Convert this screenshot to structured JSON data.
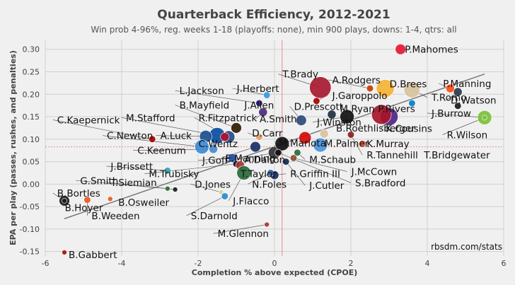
{
  "chart_data": {
    "type": "scatter",
    "title": "Quarterback Efficiency, 2012-2021",
    "subtitle": "Win prob 4-96%, reg. weeks 1-18 (playoffs: none), min 900 plays, downs: 1-4, qtrs: all",
    "xlabel": "Completion % above expected (CPOE)",
    "ylabel": "EPA per play (passes, rushes, and penalties)",
    "credit": "rbsdm.com/stats",
    "xlim": [
      -6,
      6
    ],
    "ylim": [
      -0.16,
      0.32
    ],
    "xticks": [
      "-6",
      "-4",
      "-2",
      "0",
      "2",
      "4",
      "6"
    ],
    "yticks": [
      "-0.15",
      "-0.10",
      "-0.05",
      "0.00",
      "0.05",
      "0.10",
      "0.15",
      "0.20",
      "0.25",
      "0.30"
    ],
    "grid": true,
    "reference_lines": {
      "x_mean": 0.2,
      "y_mean": 0.083
    },
    "trend_line": {
      "x": [
        -5.5,
        5.5
      ],
      "y": [
        -0.077,
        0.245
      ]
    },
    "points": [
      {
        "name": "P.Mahomes",
        "x": 3.3,
        "y": 0.3,
        "color": "#e31837",
        "plays": 3
      },
      {
        "name": "P.Manning",
        "x": 4.6,
        "y": 0.213,
        "color": "#fb4f14",
        "plays": 2
      },
      {
        "name": "T.Brady",
        "x": 1.2,
        "y": 0.215,
        "color": "#a71930",
        "plays": 9
      },
      {
        "name": "A.Rodgers",
        "x": 2.5,
        "y": 0.213,
        "color": "#c83803",
        "plays": 1
      },
      {
        "name": "D.Brees",
        "x": 2.9,
        "y": 0.213,
        "color": "#f5b335",
        "plays": 7
      },
      {
        "name": "T.Romo",
        "x": 3.6,
        "y": 0.21,
        "color": "#d8c29d",
        "plays": 6
      },
      {
        "name": "D.Watson",
        "x": 4.8,
        "y": 0.205,
        "color": "#2a3a4a",
        "plays": 2
      },
      {
        "name": "J.Herbert",
        "x": -0.2,
        "y": 0.198,
        "color": "#3a9ae0",
        "plays": 1
      },
      {
        "name": "L.Jackson",
        "x": -0.4,
        "y": 0.18,
        "color": "#241773",
        "plays": 1
      },
      {
        "name": "J.Garoppolo",
        "x": 1.1,
        "y": 0.185,
        "color": "#aa0000",
        "plays": 1
      },
      {
        "name": "R.Rivers",
        "x": 3.6,
        "y": 0.18,
        "color": "#0080c6",
        "plays": 1
      },
      {
        "name": "T.Romo-dot",
        "x": 4.8,
        "y": 0.174,
        "color": "#1a1a1a",
        "plays": 1
      },
      {
        "name": "J.Burrow",
        "x": 5.5,
        "y": 0.148,
        "color": "#7cc03b",
        "plays": 5
      },
      {
        "name": "R.Wilson",
        "x": 5.5,
        "y": 0.148,
        "color": "#7cc03b",
        "plays": 0
      },
      {
        "name": "M.Ryan",
        "x": 1.5,
        "y": 0.155,
        "color": "#203040",
        "plays": 2
      },
      {
        "name": "J.Winston",
        "x": 1.9,
        "y": 0.15,
        "color": "#111111",
        "plays": 5
      },
      {
        "name": "K.Cousins",
        "x": 3.0,
        "y": 0.15,
        "color": "#4f2683",
        "plays": 7
      },
      {
        "name": "P.Rivers-big",
        "x": 2.8,
        "y": 0.155,
        "color": "#a5162a",
        "plays": 8
      },
      {
        "name": "D.Prescott",
        "x": 0.7,
        "y": 0.142,
        "color": "#2c4b7a",
        "plays": 3
      },
      {
        "name": "A.Smith",
        "x": -0.3,
        "y": 0.16,
        "color": "#4a2d7a",
        "plays": 2
      },
      {
        "name": "B.Mayfield",
        "x": -1.0,
        "y": 0.125,
        "color": "#311d00",
        "plays": 3
      },
      {
        "name": "R.Fitzpatrick",
        "x": -1.2,
        "y": 0.105,
        "color": "#1f4a8a",
        "plays": 4
      },
      {
        "name": "D.Carr",
        "x": -0.4,
        "y": 0.105,
        "color": "#e0a070",
        "plays": 1
      },
      {
        "name": "M.Stafford",
        "x": -1.5,
        "y": 0.108,
        "color": "#0b4ea2",
        "plays": 6
      },
      {
        "name": "A.Luck",
        "x": -1.8,
        "y": 0.106,
        "color": "#1d4f91",
        "plays": 4
      },
      {
        "name": "C.Wentz",
        "x": -1.3,
        "y": 0.105,
        "color": "#b0102e",
        "plays": 2
      },
      {
        "name": "C.Kaepernick",
        "x": -3.2,
        "y": 0.1,
        "color": "#aa0000",
        "plays": 1
      },
      {
        "name": "C.Newton",
        "x": -1.9,
        "y": 0.083,
        "color": "#3d8ad4",
        "plays": 5
      },
      {
        "name": "C.Keenum",
        "x": -1.6,
        "y": 0.078,
        "color": "#4a8bd0",
        "plays": 2
      },
      {
        "name": "E.Manning",
        "x": -0.5,
        "y": 0.083,
        "color": "#1b3066",
        "plays": 3
      },
      {
        "name": "A.Dalton",
        "x": 0.0,
        "y": 0.07,
        "color": "#333333",
        "plays": 4
      },
      {
        "name": "M.Mariota",
        "x": 0.2,
        "y": 0.09,
        "color": "#111111",
        "plays": 5
      },
      {
        "name": "J.Winston-red",
        "x": 0.8,
        "y": 0.103,
        "color": "#d50a0a",
        "plays": 4
      },
      {
        "name": "M.Palmer",
        "x": 1.2,
        "y": 0.087,
        "color": "#4b92db",
        "plays": 5
      },
      {
        "name": "B.Roethlisberger",
        "x": 1.3,
        "y": 0.112,
        "color": "#d8c29d",
        "plays": 2
      },
      {
        "name": "K.Murray",
        "x": 2.3,
        "y": 0.09,
        "color": "#e8532a",
        "plays": 1
      },
      {
        "name": "R.Tannehill",
        "x": 2.0,
        "y": 0.11,
        "color": "#8a2020",
        "plays": 1
      },
      {
        "name": "M.Schaub",
        "x": 0.6,
        "y": 0.07,
        "color": "#2b6a3a",
        "plays": 1
      },
      {
        "name": "J.Goff",
        "x": -1.1,
        "y": 0.058,
        "color": "#1f4aa0",
        "plays": 2
      },
      {
        "name": "M.Trubisky",
        "x": -1.0,
        "y": 0.045,
        "color": "#0b162a",
        "plays": 1
      },
      {
        "name": "T.Taylor",
        "x": -0.9,
        "y": 0.042,
        "color": "#a33",
        "plays": 2
      },
      {
        "name": "J.Flacco",
        "x": -0.8,
        "y": 0.025,
        "color": "#2a6a3a",
        "plays": 5
      },
      {
        "name": "R.Griffin III",
        "x": 0.0,
        "y": 0.02,
        "color": "#1a2a5a",
        "plays": 2
      },
      {
        "name": "N.Foles",
        "x": -0.1,
        "y": 0.025,
        "color": "#3460a0",
        "plays": 1
      },
      {
        "name": "J.McCown",
        "x": 0.5,
        "y": 0.058,
        "color": "#8a5030",
        "plays": 1
      },
      {
        "name": "J.Cutler",
        "x": 0.3,
        "y": 0.05,
        "color": "#0f2a55",
        "plays": 1
      },
      {
        "name": "S.Bradford",
        "x": 0.1,
        "y": 0.07,
        "color": "#111111",
        "plays": 1
      },
      {
        "name": "J.Brissett",
        "x": -2.8,
        "y": 0.03,
        "color": "#3aa0b0",
        "plays": 1
      },
      {
        "name": "G.Smith",
        "x": -2.8,
        "y": -0.01,
        "color": "#2a6a3a",
        "plays": 0
      },
      {
        "name": "T.Siemian",
        "x": -2.6,
        "y": -0.012,
        "color": "#1a1a1a",
        "plays": 0
      },
      {
        "name": "D.Jones",
        "x": -1.4,
        "y": -0.018,
        "color": "#ddd0a0",
        "plays": 0
      },
      {
        "name": "S.Darnold",
        "x": -1.3,
        "y": -0.027,
        "color": "#2a8ad0",
        "plays": 1
      },
      {
        "name": "B.Osweiler",
        "x": -4.3,
        "y": -0.033,
        "color": "#e85a20",
        "plays": 0
      },
      {
        "name": "B.Weeden",
        "x": -4.9,
        "y": -0.035,
        "color": "#e85a20",
        "plays": 1
      },
      {
        "name": "B.Bortles",
        "x": -5.5,
        "y": -0.037,
        "color": "#1a1a1a",
        "plays": 3
      },
      {
        "name": "B.Hoyer",
        "x": -5.5,
        "y": -0.037,
        "color": "#1a1a1a",
        "plays": 0
      },
      {
        "name": "M.Glennon",
        "x": -0.2,
        "y": -0.09,
        "color": "#aa3333",
        "plays": 0
      },
      {
        "name": "B.Gabbert",
        "x": -5.5,
        "y": -0.152,
        "color": "#aa1111",
        "plays": 0
      }
    ],
    "labels": [
      {
        "text": "P.Mahomes",
        "lx": 3.3,
        "ly": 0.3
      },
      {
        "text": "P.Manning",
        "lx": 4.3,
        "ly": 0.224
      },
      {
        "text": "T.Brady",
        "lx": 0.1,
        "ly": 0.245
      },
      {
        "text": "A.Rodgers",
        "lx": 1.4,
        "ly": 0.232
      },
      {
        "text": "D.Brees",
        "lx": 2.9,
        "ly": 0.223
      },
      {
        "text": "J.Herbert",
        "lx": -1.1,
        "ly": 0.213
      },
      {
        "text": "L.Jackson",
        "lx": -2.6,
        "ly": 0.208
      },
      {
        "text": "T.Romo",
        "lx": 4.0,
        "ly": 0.193
      },
      {
        "text": "J.Garoppolo",
        "lx": 1.4,
        "ly": 0.197
      },
      {
        "text": "D.Watson",
        "lx": 4.5,
        "ly": 0.187
      },
      {
        "text": "B.Mayfield",
        "lx": -2.6,
        "ly": 0.176
      },
      {
        "text": "J.Allen",
        "lx": -0.9,
        "ly": 0.176
      },
      {
        "text": "D.Prescott",
        "lx": 0.4,
        "ly": 0.173
      },
      {
        "text": "M.Ryan",
        "lx": 1.6,
        "ly": 0.168
      },
      {
        "text": "P.Rivers",
        "lx": 2.6,
        "ly": 0.168
      },
      {
        "text": "M.Stafford",
        "lx": -4.0,
        "ly": 0.148
      },
      {
        "text": "R.Fitzpatrick",
        "lx": -2.1,
        "ly": 0.148
      },
      {
        "text": "A.Smith",
        "lx": -0.5,
        "ly": 0.145
      },
      {
        "text": "J.Winston",
        "lx": 1.0,
        "ly": 0.138
      },
      {
        "text": "J.Burrow",
        "lx": 4.0,
        "ly": 0.158
      },
      {
        "text": "C.Kaepernick",
        "lx": -5.8,
        "ly": 0.143
      },
      {
        "text": "D.Carr",
        "lx": -0.7,
        "ly": 0.114
      },
      {
        "text": "B.Roethlisberger",
        "lx": 1.5,
        "ly": 0.125
      },
      {
        "text": "K.Cousins",
        "lx": 2.8,
        "ly": 0.124
      },
      {
        "text": "C.Newton",
        "lx": -4.5,
        "ly": 0.108
      },
      {
        "text": "A.Luck",
        "lx": -3.1,
        "ly": 0.108
      },
      {
        "text": "M.Mariota",
        "lx": -0.0,
        "ly": 0.092
      },
      {
        "text": "M.Palmer",
        "lx": 1.2,
        "ly": 0.091
      },
      {
        "text": "K.Murray",
        "lx": 2.3,
        "ly": 0.09
      },
      {
        "text": "C.Wentz",
        "lx": -2.1,
        "ly": 0.09
      },
      {
        "text": "R.Wilson",
        "lx": 4.4,
        "ly": 0.11
      },
      {
        "text": "C.Keenum",
        "lx": -3.7,
        "ly": 0.075
      },
      {
        "text": "J.Goff",
        "lx": -2.0,
        "ly": 0.053
      },
      {
        "text": "E.Manning",
        "lx": -1.4,
        "ly": 0.058
      },
      {
        "text": "A.Dalton",
        "lx": -0.9,
        "ly": 0.055
      },
      {
        "text": "M.Schaub",
        "lx": 0.8,
        "ly": 0.055
      },
      {
        "text": "R.Tannehill",
        "lx": 2.3,
        "ly": 0.065
      },
      {
        "text": "T.Bridgewater",
        "lx": 3.8,
        "ly": 0.065
      },
      {
        "text": "J.Brissett",
        "lx": -4.4,
        "ly": 0.04
      },
      {
        "text": "M.Trubisky",
        "lx": -3.4,
        "ly": 0.023
      },
      {
        "text": "T.Taylor",
        "lx": -1.0,
        "ly": 0.023
      },
      {
        "text": "R.Griffin III",
        "lx": 0.3,
        "ly": 0.023
      },
      {
        "text": "J.McCown",
        "lx": 1.9,
        "ly": 0.028
      },
      {
        "text": "G.Smith",
        "lx": -5.2,
        "ly": 0.008
      },
      {
        "text": "T.Siemian",
        "lx": -4.4,
        "ly": 0.004
      },
      {
        "text": "D.Jones",
        "lx": -2.2,
        "ly": 0.0
      },
      {
        "text": "N.Foles",
        "lx": -0.7,
        "ly": 0.0
      },
      {
        "text": "J.Cutler",
        "lx": 0.8,
        "ly": -0.003
      },
      {
        "text": "S.Bradford",
        "lx": 2.0,
        "ly": 0.003
      },
      {
        "text": "B.Bortles",
        "lx": -5.8,
        "ly": -0.02
      },
      {
        "text": "B.Osweiler",
        "lx": -4.2,
        "ly": -0.04
      },
      {
        "text": "J.Flacco",
        "lx": -1.2,
        "ly": -0.037
      },
      {
        "text": "B.Hoyer",
        "lx": -5.6,
        "ly": -0.052
      },
      {
        "text": "B.Weeden",
        "lx": -4.9,
        "ly": -0.07
      },
      {
        "text": "S.Darnold",
        "lx": -2.3,
        "ly": -0.07
      },
      {
        "text": "M.Glennon",
        "lx": -1.6,
        "ly": -0.11
      },
      {
        "text": "B.Gabbert",
        "lx": -5.5,
        "ly": -0.157
      }
    ]
  }
}
